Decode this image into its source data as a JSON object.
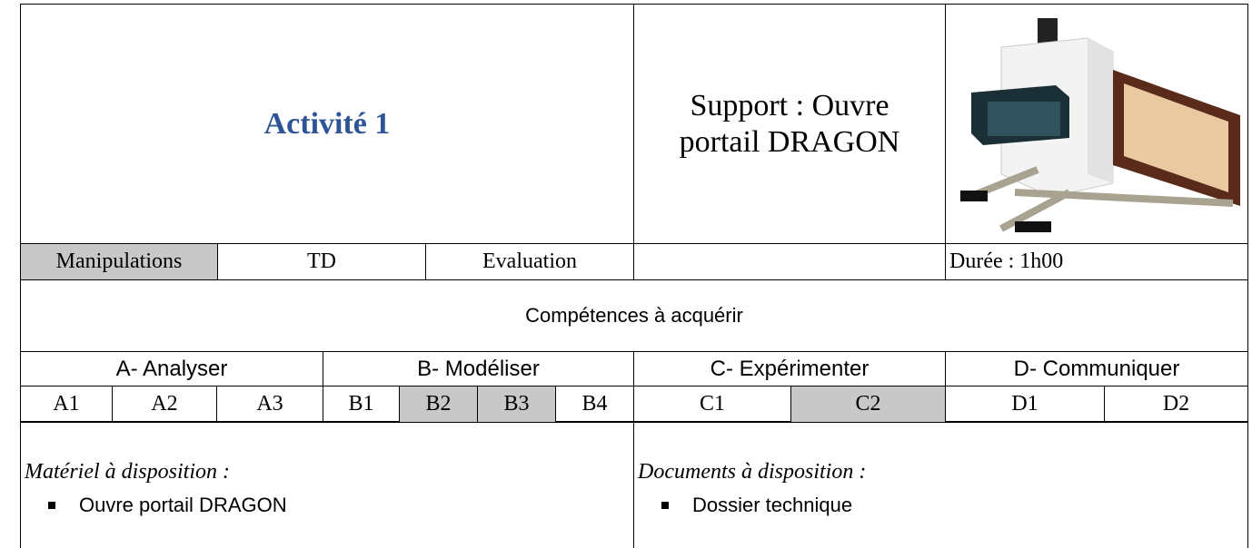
{
  "header": {
    "title": "Activité 1",
    "support": "Support : Ouvre portail DRAGON"
  },
  "activity_types": [
    "Manipulations",
    "TD",
    "Evaluation"
  ],
  "duration": "Durée : 1h00",
  "skills": {
    "title": "Compétences à acquérir",
    "groups": [
      {
        "label": "A- Analyser",
        "items": [
          "A1",
          "A2",
          "A3"
        ]
      },
      {
        "label": "B- Modéliser",
        "items": [
          "B1",
          "B2",
          "B3",
          "B4"
        ]
      },
      {
        "label": "C- Expérimenter",
        "items": [
          "C1",
          "C2"
        ]
      },
      {
        "label": "D- Communiquer",
        "items": [
          "D1",
          "D2"
        ]
      }
    ]
  },
  "resources": {
    "materials": {
      "title": "Matériel à disposition :",
      "items": [
        "Ouvre portail DRAGON"
      ]
    },
    "documents": {
      "title": "Documents à disposition :",
      "items": [
        "Dossier technique"
      ]
    }
  }
}
